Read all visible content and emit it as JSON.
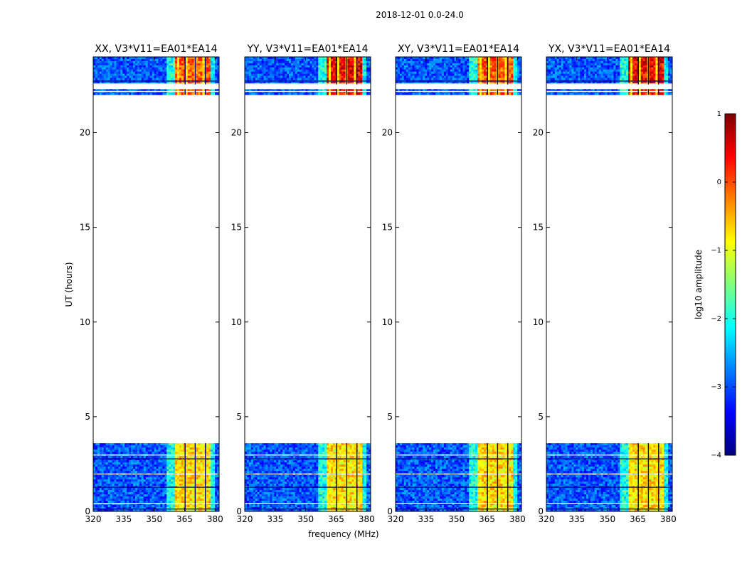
{
  "chart_data": {
    "type": "heatmap",
    "suptitle": "2018-12-01 0.0-24.0",
    "xlabel": "frequency (MHz)",
    "ylabel": "UT (hours)",
    "xlim": [
      320,
      382
    ],
    "ylim": [
      0,
      24
    ],
    "xticks": [
      320,
      335,
      350,
      365,
      380
    ],
    "yticks": [
      0,
      5,
      10,
      15,
      20
    ],
    "panels": [
      {
        "title": "XX, V3*V11=EA01*EA14",
        "pol": "XX"
      },
      {
        "title": "YY, V3*V11=EA01*EA14",
        "pol": "YY"
      },
      {
        "title": "XY, V3*V11=EA01*EA14",
        "pol": "XY"
      },
      {
        "title": "YX, V3*V11=EA01*EA14",
        "pol": "YX"
      }
    ],
    "data_time_ranges_hours": [
      [
        0.0,
        3.6
      ],
      [
        22.0,
        24.0
      ]
    ],
    "bright_band_mhz": [
      360,
      378
    ],
    "colorbar": {
      "label": "log10 amplitude",
      "range": [
        -4,
        1
      ],
      "ticks": [
        1,
        0,
        -1,
        -2,
        -3,
        -4
      ],
      "tick_labels": [
        "1",
        "0",
        "−1",
        "−2",
        "−3",
        "−4"
      ],
      "colormap": "jet"
    }
  }
}
